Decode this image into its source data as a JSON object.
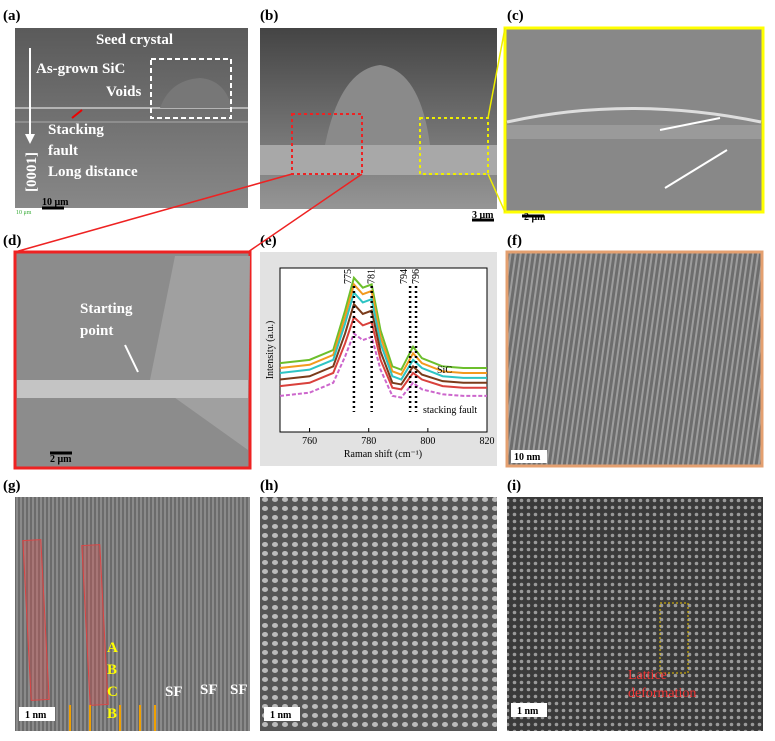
{
  "panels": [
    "(a)",
    "(b)",
    "(c)",
    "(d)",
    "(e)",
    "(f)",
    "(g)",
    "(h)",
    "(i)"
  ],
  "a": {
    "texts": [
      "Seed crystal",
      "As-grown SiC",
      "Voids",
      "Stacking",
      "fault",
      "Long distance"
    ],
    "direction": "[0001]",
    "scale_small": "10 μm",
    "scale": "10 μm"
  },
  "b": {
    "scale": "3 μm"
  },
  "c": {
    "scale": "2 μm"
  },
  "d": {
    "texts": [
      "Starting",
      "point"
    ],
    "scale": "2 μm"
  },
  "e": {
    "chart_data": {
      "type": "line",
      "xlabel": "Raman shift (cm⁻¹)",
      "ylabel": "Intensity (a.u.)",
      "x": [
        750,
        760,
        768,
        772,
        775,
        778,
        781,
        784,
        788,
        791,
        795,
        798,
        805,
        812,
        820
      ],
      "xlim": [
        750,
        820
      ],
      "xticks": [
        760,
        780,
        800,
        820
      ],
      "ylim": [
        0,
        1
      ],
      "series": [
        {
          "color": "#6cbf2c",
          "values": [
            0.42,
            0.44,
            0.5,
            0.74,
            0.94,
            0.88,
            0.9,
            0.62,
            0.4,
            0.38,
            0.52,
            0.45,
            0.4,
            0.39,
            0.39
          ]
        },
        {
          "color": "#f39a1e",
          "values": [
            0.39,
            0.41,
            0.47,
            0.7,
            0.9,
            0.84,
            0.86,
            0.58,
            0.37,
            0.35,
            0.48,
            0.42,
            0.37,
            0.36,
            0.36
          ]
        },
        {
          "color": "#2ec4c4",
          "values": [
            0.36,
            0.38,
            0.44,
            0.66,
            0.85,
            0.79,
            0.81,
            0.54,
            0.34,
            0.32,
            0.44,
            0.39,
            0.34,
            0.33,
            0.33
          ]
        },
        {
          "color": "#7a3b1a",
          "values": [
            0.32,
            0.34,
            0.4,
            0.6,
            0.78,
            0.72,
            0.74,
            0.49,
            0.3,
            0.29,
            0.4,
            0.35,
            0.31,
            0.3,
            0.3
          ]
        },
        {
          "color": "#d9413c",
          "values": [
            0.28,
            0.3,
            0.36,
            0.54,
            0.7,
            0.65,
            0.67,
            0.44,
            0.27,
            0.26,
            0.36,
            0.32,
            0.28,
            0.27,
            0.27
          ]
        },
        {
          "color": "#cc66cc",
          "values": [
            0.22,
            0.24,
            0.3,
            0.46,
            0.6,
            0.56,
            0.58,
            0.38,
            0.22,
            0.21,
            0.3,
            0.26,
            0.23,
            0.22,
            0.22
          ]
        }
      ],
      "peaks": [
        775,
        781,
        794,
        796
      ],
      "annotations": [
        "SiC",
        "stacking fault"
      ]
    }
  },
  "f": {
    "scale": "10 nm"
  },
  "g": {
    "stacking": [
      "A",
      "B",
      "C",
      "B"
    ],
    "sf": [
      "SF",
      "SF",
      "SF"
    ],
    "scale": "1 nm"
  },
  "h": {
    "scale": "1 nm"
  },
  "i": {
    "texts": [
      "Lattice",
      "deformation"
    ],
    "scale": "1 nm"
  }
}
